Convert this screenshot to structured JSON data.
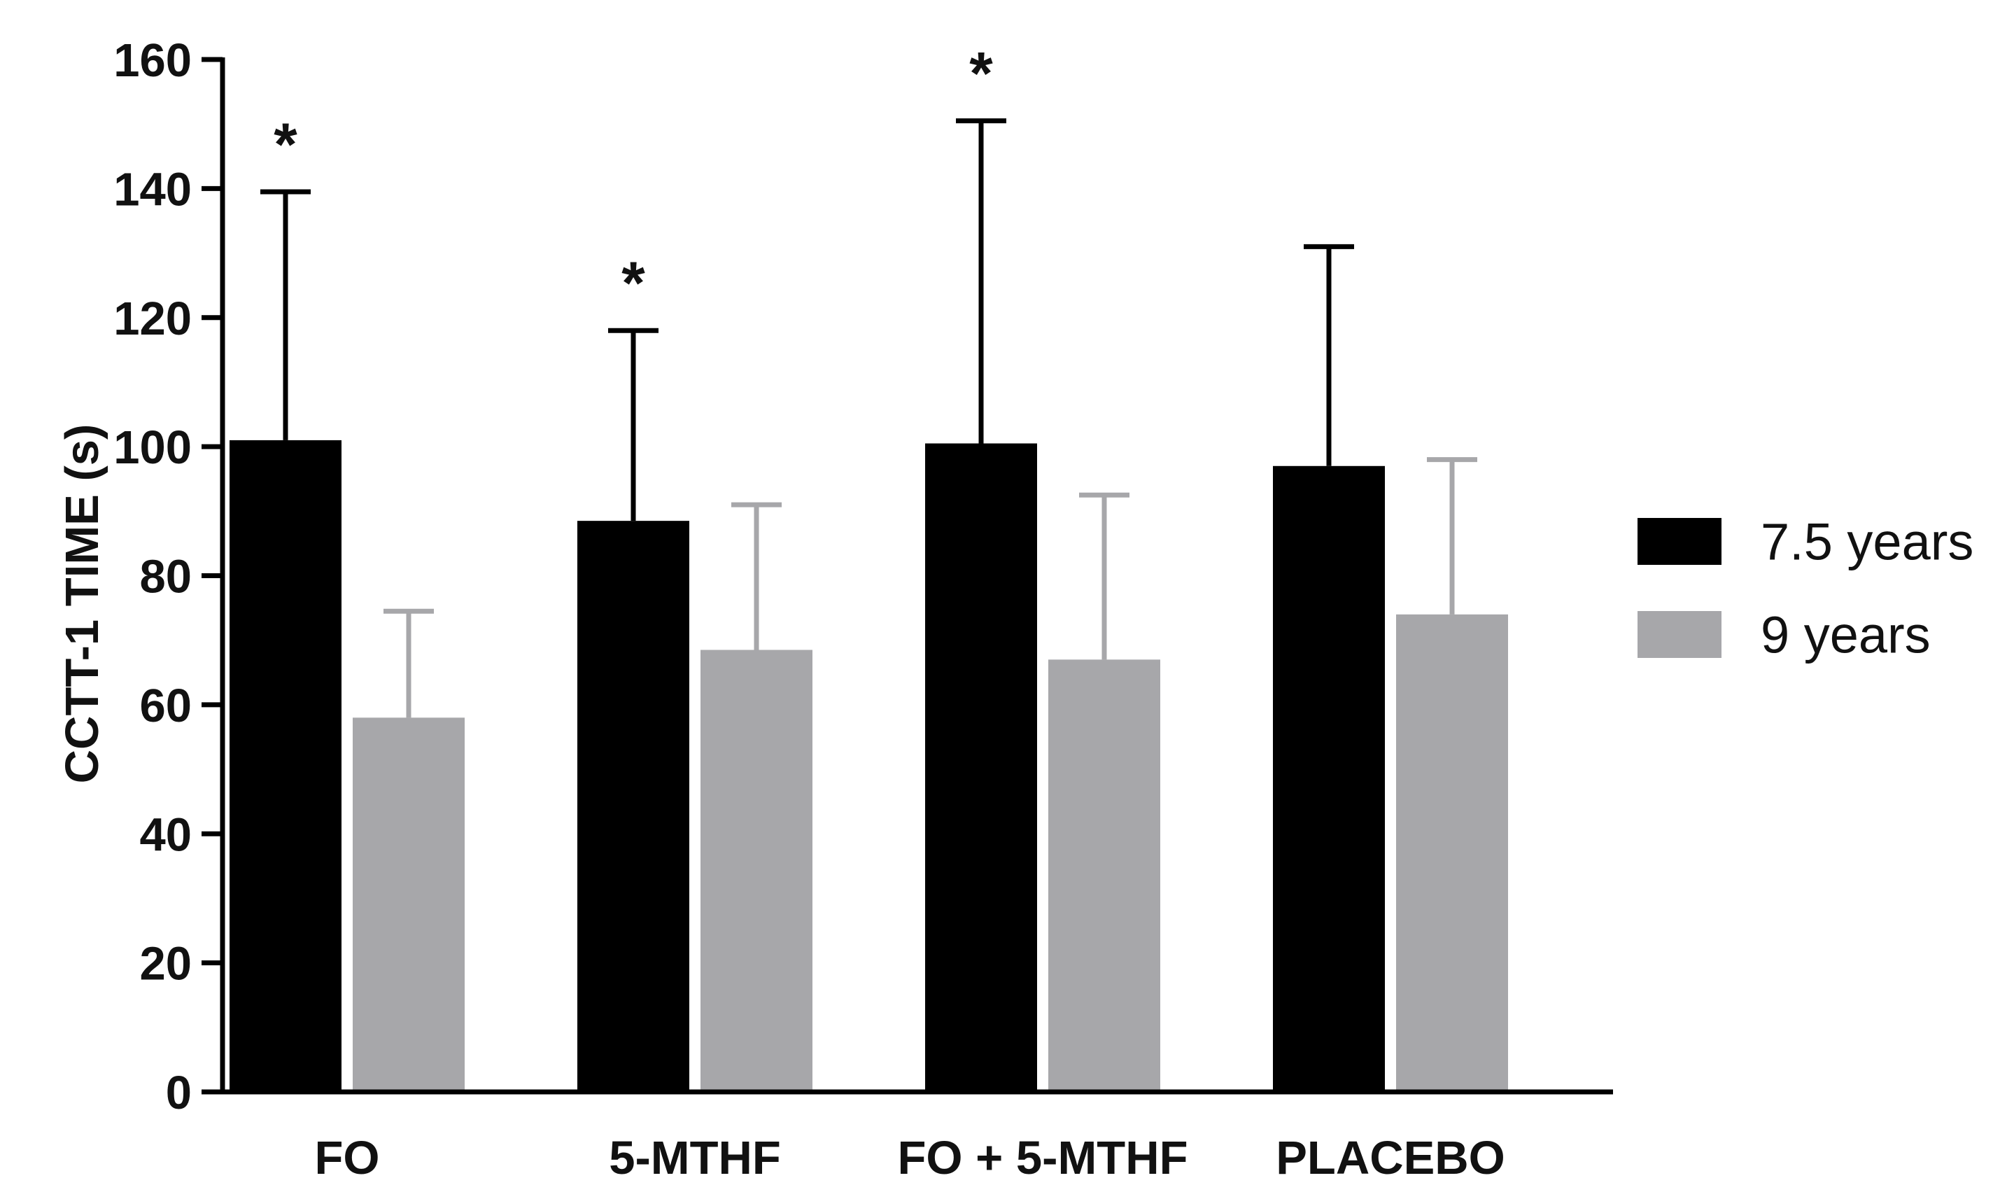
{
  "chart_data": {
    "type": "bar",
    "title": "",
    "xlabel": "",
    "ylabel": "CCTT-1 TIME (s)",
    "ylim": [
      0,
      160
    ],
    "yticks": [
      0,
      20,
      40,
      60,
      80,
      100,
      120,
      140,
      160
    ],
    "categories": [
      "FO",
      "5-MTHF",
      "FO + 5-MTHF",
      "PLACEBO"
    ],
    "series": [
      {
        "name": "7.5 years",
        "color": "#000000",
        "values": [
          101,
          88.5,
          100.5,
          97
        ],
        "error_upper": [
          139.5,
          118,
          150.5,
          131
        ]
      },
      {
        "name": "9 years",
        "color": "#a7a7aa",
        "values": [
          58,
          68.5,
          67,
          74
        ],
        "error_upper": [
          74.5,
          91,
          92.5,
          98
        ]
      }
    ],
    "annotations": [
      {
        "category": "FO",
        "text": "*"
      },
      {
        "category": "5-MTHF",
        "text": "*"
      },
      {
        "category": "FO + 5-MTHF",
        "text": "*"
      }
    ],
    "grid": false,
    "legend_position": "right"
  }
}
